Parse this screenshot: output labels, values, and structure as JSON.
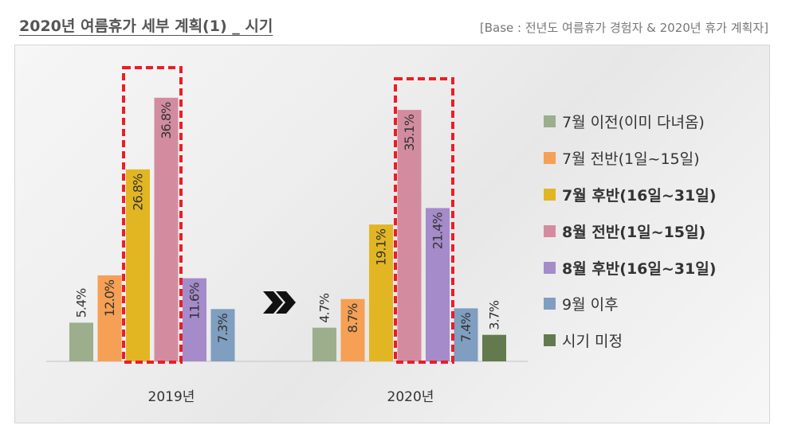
{
  "header": {
    "title": "2020년 여름휴가 세부 계획(1) _ 시기",
    "base_note": "[Base : 전년도 여름휴가 경험자 & 2020년 휴가 계획자]"
  },
  "colors": {
    "highlight_box": "#ee1c25",
    "arrow": "#111111",
    "axis": "#d0d0d0"
  },
  "chart_data": {
    "type": "bar",
    "categories": [
      "2019년",
      "2020년"
    ],
    "series": [
      {
        "name": "7월 이전(이미 다녀옴)",
        "color": "#9cae8c",
        "values": [
          5.4,
          4.7
        ],
        "labels": [
          "5.4%",
          "4.7%"
        ],
        "bold": false
      },
      {
        "name": "7월 전반(1일~15일)",
        "color": "#f5a054",
        "values": [
          12.0,
          8.7
        ],
        "labels": [
          "12.0%",
          "8.7%"
        ],
        "bold": false
      },
      {
        "name": "7월 후반(16일~31일)",
        "color": "#e2b623",
        "values": [
          26.8,
          19.1
        ],
        "labels": [
          "26.8%",
          "19.1%"
        ],
        "bold": true
      },
      {
        "name": "8월 전반(1일~15일)",
        "color": "#d38c9f",
        "values": [
          36.8,
          35.1
        ],
        "labels": [
          "36.8%",
          "35.1%"
        ],
        "bold": true
      },
      {
        "name": "8월 후반(16일~31일)",
        "color": "#a58bc9",
        "values": [
          11.6,
          21.4
        ],
        "labels": [
          "11.6%",
          "21.4%"
        ],
        "bold": true
      },
      {
        "name": "9월 이후",
        "color": "#7f9ec0",
        "values": [
          7.3,
          7.4
        ],
        "labels": [
          "7.3%",
          "7.4%"
        ],
        "bold": false
      },
      {
        "name": "시기 미정",
        "color": "#637a4e",
        "values": [
          null,
          3.7
        ],
        "labels": [
          "",
          "3.7%"
        ],
        "bold": false
      }
    ],
    "highlighted_series": [
      "7월 후반(16일~31일)",
      "8월 전반(1일~15일)"
    ],
    "highlighted_series_2020": [
      "8월 전반(1일~15일)",
      "8월 후반(16일~31일)"
    ],
    "ylim": [
      0,
      40
    ],
    "legend_position": "right",
    "grid": false
  }
}
